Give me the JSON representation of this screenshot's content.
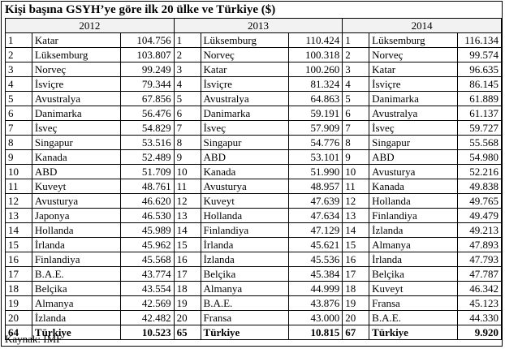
{
  "title": "Kişi başına GSYH’ye göre ilk 20 ülke ve Türkiye ($)",
  "source": "Kaynak: IMF",
  "years": [
    {
      "year": "2012",
      "rows": [
        {
          "rank": "1",
          "country": "Katar",
          "value": "104.756"
        },
        {
          "rank": "2",
          "country": "Lüksemburg",
          "value": "103.807"
        },
        {
          "rank": "3",
          "country": "Norveç",
          "value": "99.249"
        },
        {
          "rank": "4",
          "country": "İsviçre",
          "value": "79.344"
        },
        {
          "rank": "5",
          "country": "Avustralya",
          "value": "67.856"
        },
        {
          "rank": "6",
          "country": "Danimarka",
          "value": "56.476"
        },
        {
          "rank": "7",
          "country": "İsveç",
          "value": "54.829"
        },
        {
          "rank": "8",
          "country": "Singapur",
          "value": "53.516"
        },
        {
          "rank": "9",
          "country": "Kanada",
          "value": "52.489"
        },
        {
          "rank": "10",
          "country": "ABD",
          "value": "51.709"
        },
        {
          "rank": "11",
          "country": "Kuveyt",
          "value": "48.761"
        },
        {
          "rank": "12",
          "country": "Avusturya",
          "value": "46.620"
        },
        {
          "rank": "13",
          "country": "Japonya",
          "value": "46.530"
        },
        {
          "rank": "14",
          "country": "Hollanda",
          "value": "45.989"
        },
        {
          "rank": "15",
          "country": "İrlanda",
          "value": "45.962"
        },
        {
          "rank": "16",
          "country": "Finlandiya",
          "value": "45.568"
        },
        {
          "rank": "17",
          "country": "B.A.E.",
          "value": "43.774"
        },
        {
          "rank": "18",
          "country": "Belçika",
          "value": "43.554"
        },
        {
          "rank": "19",
          "country": "Almanya",
          "value": "42.569"
        },
        {
          "rank": "20",
          "country": "İzlanda",
          "value": "42.482"
        }
      ],
      "turkey": {
        "rank": "64",
        "country": "Türkiye",
        "value": "10.523"
      }
    },
    {
      "year": "2013",
      "rows": [
        {
          "rank": "1",
          "country": "Lüksemburg",
          "value": "110.424"
        },
        {
          "rank": "2",
          "country": "Norveç",
          "value": "100.318"
        },
        {
          "rank": "3",
          "country": "Katar",
          "value": "100.260"
        },
        {
          "rank": "4",
          "country": "İsviçre",
          "value": "81.324"
        },
        {
          "rank": "5",
          "country": "Avustralya",
          "value": "64.863"
        },
        {
          "rank": "6",
          "country": "Danimarka",
          "value": "59.191"
        },
        {
          "rank": "7",
          "country": "İsveç",
          "value": "57.909"
        },
        {
          "rank": "8",
          "country": "Singapur",
          "value": "54.776"
        },
        {
          "rank": "9",
          "country": "ABD",
          "value": "53.101"
        },
        {
          "rank": "10",
          "country": "Kanada",
          "value": "51.990"
        },
        {
          "rank": "11",
          "country": "Avusturya",
          "value": "48.957"
        },
        {
          "rank": "12",
          "country": "Kuveyt",
          "value": "47.639"
        },
        {
          "rank": "13",
          "country": "Hollanda",
          "value": "47.634"
        },
        {
          "rank": "14",
          "country": "Finlandiya",
          "value": "47.129"
        },
        {
          "rank": "15",
          "country": "İrlanda",
          "value": "45.621"
        },
        {
          "rank": "16",
          "country": "İzlanda",
          "value": "45.536"
        },
        {
          "rank": "17",
          "country": "Belçika",
          "value": "45.384"
        },
        {
          "rank": "18",
          "country": "Almanya",
          "value": "44.999"
        },
        {
          "rank": "19",
          "country": "B.A.E.",
          "value": "43.876"
        },
        {
          "rank": "20",
          "country": "Fransa",
          "value": "43.000"
        }
      ],
      "turkey": {
        "rank": "65",
        "country": "Türkiye",
        "value": "10.815"
      }
    },
    {
      "year": "2014",
      "rows": [
        {
          "rank": "1",
          "country": "Lüksemburg",
          "value": "116.134"
        },
        {
          "rank": "2",
          "country": "Norveç",
          "value": "99.574"
        },
        {
          "rank": "3",
          "country": "Katar",
          "value": "96.635"
        },
        {
          "rank": "4",
          "country": "İsviçre",
          "value": "86.145"
        },
        {
          "rank": "5",
          "country": "Danimarka",
          "value": "61.889"
        },
        {
          "rank": "6",
          "country": "Avustralya",
          "value": "61.137"
        },
        {
          "rank": "7",
          "country": "İsveç",
          "value": "59.727"
        },
        {
          "rank": "8",
          "country": "Singapur",
          "value": "55.568"
        },
        {
          "rank": "9",
          "country": "ABD",
          "value": "54.980"
        },
        {
          "rank": "10",
          "country": "Avusturya",
          "value": "52.216"
        },
        {
          "rank": "11",
          "country": "Kanada",
          "value": "49.838"
        },
        {
          "rank": "12",
          "country": "Hollanda",
          "value": "49.765"
        },
        {
          "rank": "13",
          "country": "Finlandiya",
          "value": "49.479"
        },
        {
          "rank": "14",
          "country": "İzlanda",
          "value": "49.213"
        },
        {
          "rank": "15",
          "country": "Almanya",
          "value": "47.893"
        },
        {
          "rank": "16",
          "country": "İrlanda",
          "value": "47.793"
        },
        {
          "rank": "17",
          "country": "Belçika",
          "value": "47.787"
        },
        {
          "rank": "18",
          "country": "Kuveyt",
          "value": "46.342"
        },
        {
          "rank": "19",
          "country": "Fransa",
          "value": "45.123"
        },
        {
          "rank": "20",
          "country": "B.A.E.",
          "value": "44.330"
        }
      ],
      "turkey": {
        "rank": "67",
        "country": "Türkiye",
        "value": "9.920"
      }
    }
  ]
}
